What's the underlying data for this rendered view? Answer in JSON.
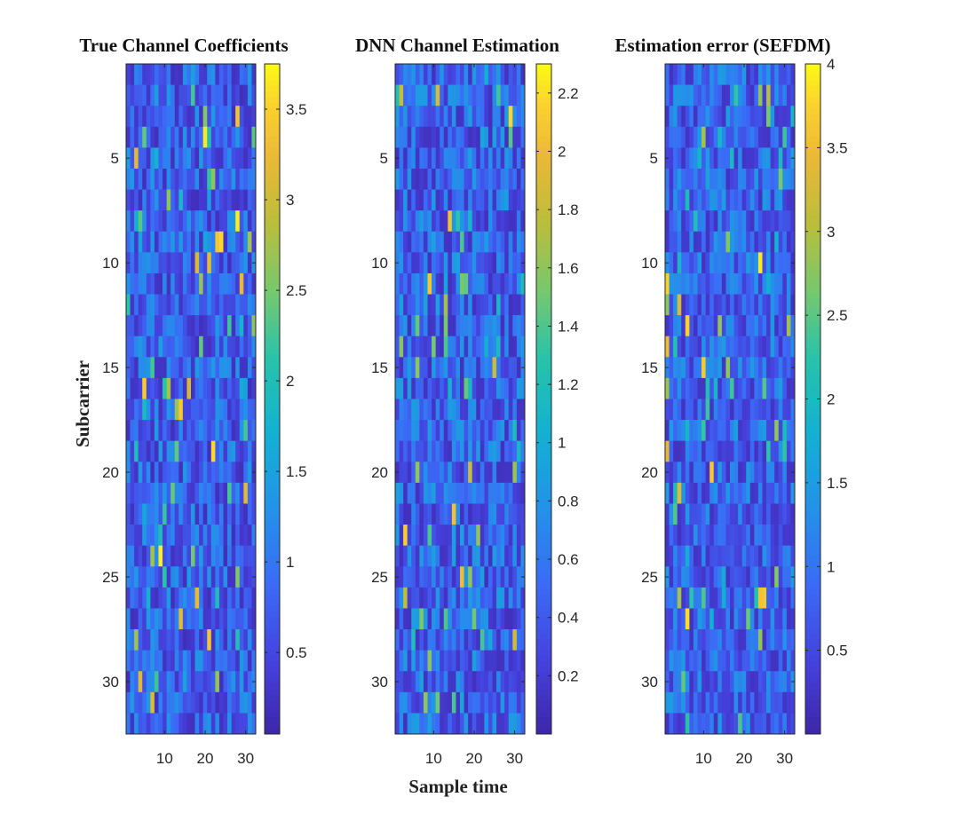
{
  "figure": {
    "xlabel": "Sample time",
    "ylabel": "Subcarrier"
  },
  "chart_data": [
    {
      "type": "heatmap",
      "title": "True Channel Coefficients",
      "colormap": "parula",
      "rows": 32,
      "cols": 32,
      "x_ticks": [
        "10",
        "20",
        "30"
      ],
      "y_ticks": [
        "5",
        "10",
        "15",
        "20",
        "25",
        "30"
      ],
      "colorbar_ticks": [
        "0.5",
        "1",
        "1.5",
        "2",
        "2.5",
        "3",
        "3.5"
      ],
      "clim": [
        0.05,
        3.75
      ],
      "value_distribution": {
        "typical_range": [
          0.2,
          1.4
        ],
        "peak": 3.7
      },
      "seed": 11
    },
    {
      "type": "heatmap",
      "title": "DNN Channel Estimation",
      "colormap": "parula",
      "rows": 32,
      "cols": 32,
      "x_ticks": [
        "10",
        "20",
        "30"
      ],
      "y_ticks": [
        "5",
        "10",
        "15",
        "20",
        "25",
        "30"
      ],
      "colorbar_ticks": [
        "0.2",
        "0.4",
        "0.6",
        "0.8",
        "1",
        "1.2",
        "1.4",
        "1.6",
        "1.8",
        "2",
        "2.2"
      ],
      "clim": [
        0.0,
        2.3
      ],
      "value_distribution": {
        "typical_range": [
          0.1,
          0.9
        ],
        "peak": 2.2
      },
      "seed": 23
    },
    {
      "type": "heatmap",
      "title": "Estimation error (SEFDM)",
      "colormap": "parula",
      "rows": 32,
      "cols": 32,
      "x_ticks": [
        "10",
        "20",
        "30"
      ],
      "y_ticks": [
        "5",
        "10",
        "15",
        "20",
        "25",
        "30"
      ],
      "colorbar_ticks": [
        "0.5",
        "1",
        "1.5",
        "2",
        "2.5",
        "3",
        "3.5",
        "4"
      ],
      "clim": [
        0.0,
        4.0
      ],
      "value_distribution": {
        "typical_range": [
          0.2,
          1.5
        ],
        "peak": 4.0
      },
      "seed": 37
    }
  ]
}
